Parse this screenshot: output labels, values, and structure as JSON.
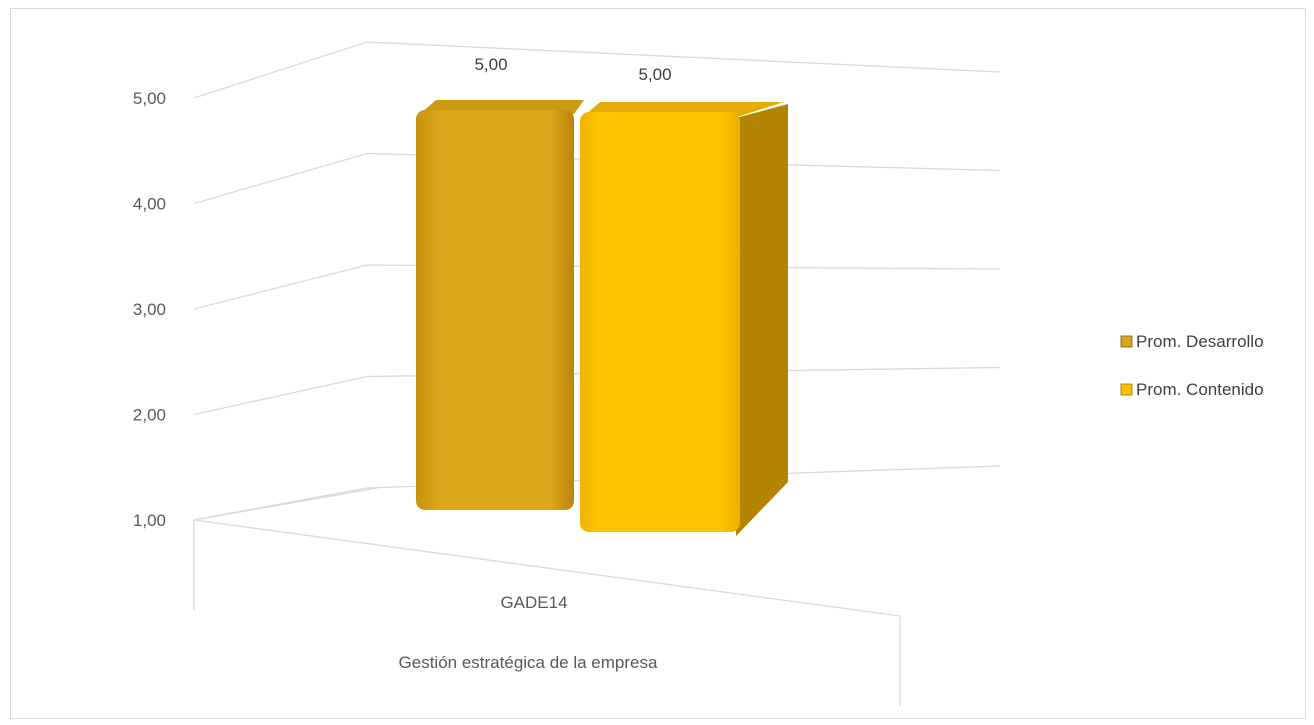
{
  "chart_data": {
    "type": "bar",
    "title": "",
    "categories": [
      "GADE14"
    ],
    "group_label": "Gestión estratégica de la empresa",
    "series": [
      {
        "name": "Prom. Desarrollo",
        "values": [
          5.0
        ],
        "color": "#D9A51A"
      },
      {
        "name": "Prom. Contenido",
        "values": [
          5.0
        ],
        "color": "#FFC000"
      }
    ],
    "data_labels": [
      "5,00",
      "5,00"
    ],
    "y_ticks": [
      "1,00",
      "2,00",
      "3,00",
      "4,00",
      "5,00"
    ],
    "y_tick_values": [
      1,
      2,
      3,
      4,
      5
    ],
    "ylim": [
      1,
      5
    ],
    "grid": true,
    "legend_position": "right",
    "three_d": true
  }
}
